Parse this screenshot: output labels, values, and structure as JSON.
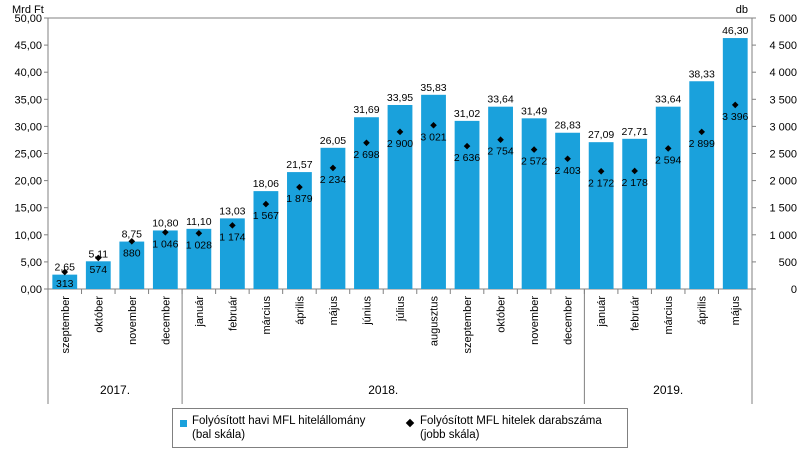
{
  "chart_data": {
    "type": "bar",
    "left_axis_unit": "Mrd Ft",
    "right_axis_unit": "db",
    "left_ylim": [
      0,
      50
    ],
    "right_ylim": [
      0,
      5000
    ],
    "left_ticks": [
      "0,00",
      "5,00",
      "10,00",
      "15,00",
      "20,00",
      "25,00",
      "30,00",
      "35,00",
      "40,00",
      "45,00",
      "50,00"
    ],
    "right_ticks": [
      "0",
      "500",
      "1 000",
      "1 500",
      "2 000",
      "2 500",
      "3 000",
      "3 500",
      "4 000",
      "4 500",
      "5 000"
    ],
    "categories": [
      "szeptember",
      "október",
      "november",
      "december",
      "január",
      "február",
      "március",
      "április",
      "május",
      "június",
      "július",
      "augusztus",
      "szeptember",
      "október",
      "november",
      "december",
      "január",
      "február",
      "március",
      "április",
      "május"
    ],
    "year_groups": [
      {
        "label": "2017.",
        "count": 4
      },
      {
        "label": "2018.",
        "count": 12
      },
      {
        "label": "2019.",
        "count": 5
      }
    ],
    "series": [
      {
        "name": "Folyósított havi MFL hitelállomány (bal skála)",
        "type": "bar",
        "axis": "left",
        "color": "#1aa1dc",
        "values": [
          2.65,
          5.11,
          8.75,
          10.8,
          11.1,
          13.03,
          18.06,
          21.57,
          26.05,
          31.69,
          33.95,
          35.83,
          31.02,
          33.64,
          31.49,
          28.83,
          27.09,
          27.71,
          33.64,
          38.33,
          46.3
        ],
        "labels": [
          "2,65",
          "5,11",
          "8,75",
          "10,80",
          "11,10",
          "13,03",
          "18,06",
          "21,57",
          "26,05",
          "31,69",
          "33,95",
          "35,83",
          "31,02",
          "33,64",
          "31,49",
          "28,83",
          "27,09",
          "27,71",
          "33,64",
          "38,33",
          "46,30"
        ]
      },
      {
        "name": "Folyósított MFL hitelek darabszáma (jobb skála)",
        "type": "scatter",
        "marker": "diamond",
        "axis": "right",
        "color": "#000000",
        "values": [
          313,
          574,
          880,
          1046,
          1028,
          1174,
          1567,
          1879,
          2234,
          2698,
          2900,
          3021,
          2636,
          2754,
          2572,
          2403,
          2172,
          2178,
          2594,
          2899,
          3396
        ],
        "labels": [
          "313",
          "574",
          "880",
          "1 046",
          "1 028",
          "1 174",
          "1 567",
          "1 879",
          "2 234",
          "2 698",
          "2 900",
          "3 021",
          "2 636",
          "2 754",
          "2 572",
          "2 403",
          "2 172",
          "2 178",
          "2 594",
          "2 899",
          "3 396"
        ]
      }
    ],
    "legend": [
      {
        "line1": "Folyósított havi MFL hitelállomány",
        "line2": "(bal skála)"
      },
      {
        "line1": "Folyósított MFL hitelek darabszáma",
        "line2": "(jobb skála)"
      }
    ],
    "legend_placement": "bottom-center",
    "grid": false
  }
}
